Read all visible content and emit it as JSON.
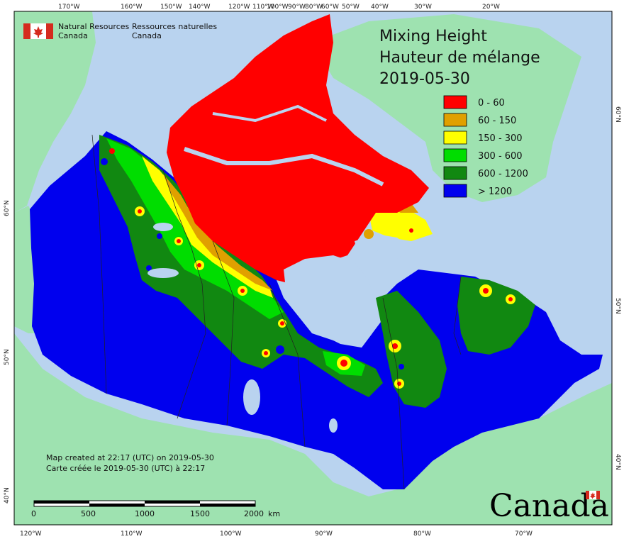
{
  "title": {
    "line1": "Mixing Height",
    "line2": "Hauteur de mélange",
    "date": "2019-05-30"
  },
  "header": {
    "org_en_1": "Natural Resources",
    "org_en_2": "Canada",
    "org_fr_1": "Ressources naturelles",
    "org_fr_2": "Canada"
  },
  "legend": [
    {
      "label": "0 - 60",
      "color": "#ff0000"
    },
    {
      "label": "60 - 150",
      "color": "#e0a000"
    },
    {
      "label": "150 - 300",
      "color": "#ffff00"
    },
    {
      "label": "300 - 600",
      "color": "#00dd00"
    },
    {
      "label": "600 - 1200",
      "color": "#118811"
    },
    {
      "label": "> 1200",
      "color": "#0000ee"
    }
  ],
  "top_ticks": [
    "170°W",
    "160°W",
    "150°W",
    "140°W",
    "120°W",
    "110°W",
    "100°W",
    "90°W",
    "80°W",
    "60°W",
    "50°W",
    "40°W",
    "30°W",
    "20°W"
  ],
  "bottom_ticks": [
    "120°W",
    "110°W",
    "100°W",
    "90°W",
    "80°W",
    "70°W"
  ],
  "left_ticks": [
    "60°N",
    "50°N",
    "40°N"
  ],
  "right_ticks": [
    "60°N",
    "50°N",
    "40°N"
  ],
  "created": {
    "en": "Map created at 22:17 (UTC) on 2019-05-30",
    "fr": "Carte créée le 2019-05-30 (UTC) à 22:17"
  },
  "scale": {
    "labels": [
      "0",
      "500",
      "1000",
      "1500",
      "2000"
    ],
    "unit": "km"
  },
  "wordmark": "Canada",
  "colors": {
    "ocean": "#b9d3ef",
    "land_other": "#9ee2b0",
    "frame": "#000000"
  }
}
